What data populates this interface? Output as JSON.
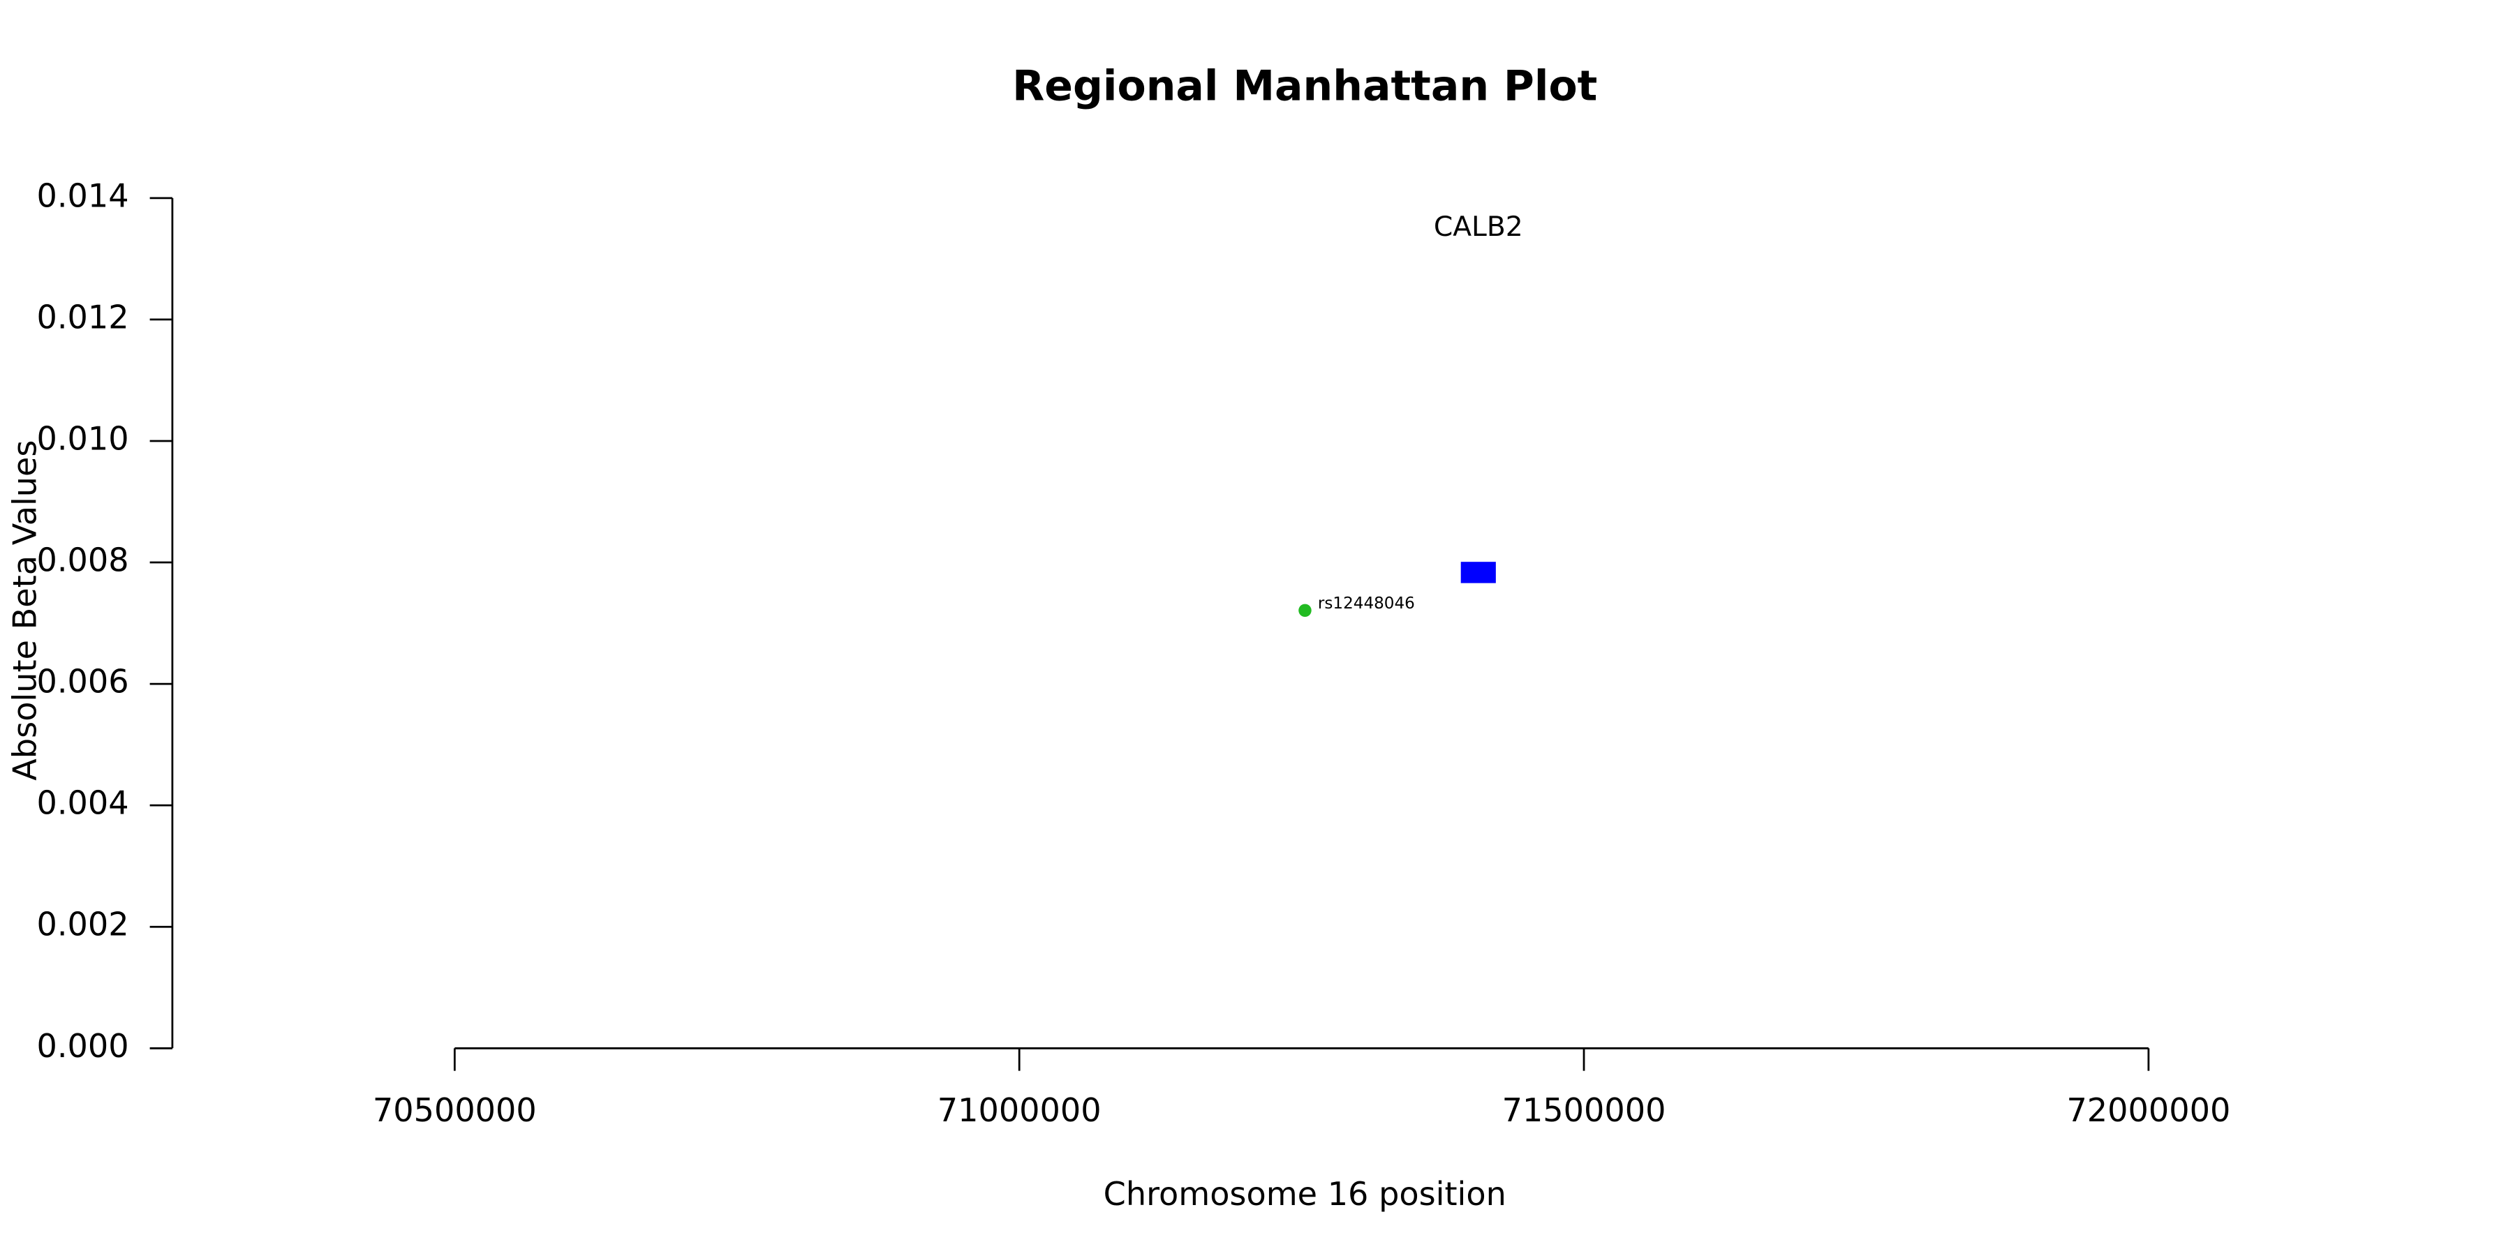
{
  "chart_data": {
    "type": "scatter",
    "title": "Regional Manhattan Plot",
    "x_label": "Chromosome 16 position",
    "y_label": "Absolute Beta Values",
    "xlim": [
      70250000,
      72250000
    ],
    "ylim": [
      0,
      0.014
    ],
    "xticks": [
      70500000,
      71000000,
      71500000,
      72000000
    ],
    "yticks": [
      {
        "value": 0,
        "label": "0.000"
      },
      {
        "value": 0.002,
        "label": "0.002"
      },
      {
        "value": 0.004,
        "label": "0.004"
      },
      {
        "value": 0.006,
        "label": "0.006"
      },
      {
        "value": 0.008,
        "label": "0.008"
      },
      {
        "value": 0.01,
        "label": "0.010"
      },
      {
        "value": 0.012,
        "label": "0.012"
      },
      {
        "value": 0.014,
        "label": "0.014"
      }
    ],
    "series": [
      {
        "name": "rs12448046",
        "color": "#22bb22",
        "x": [
          71253000
        ],
        "values": [
          0.00721
        ]
      }
    ],
    "genes": [
      {
        "name": "CALB2",
        "color": "#0000ff",
        "start": 71391000,
        "end": 71422000,
        "ymin": 0.00766,
        "ymax": 0.00801,
        "label_y": 0.0135
      }
    ]
  }
}
